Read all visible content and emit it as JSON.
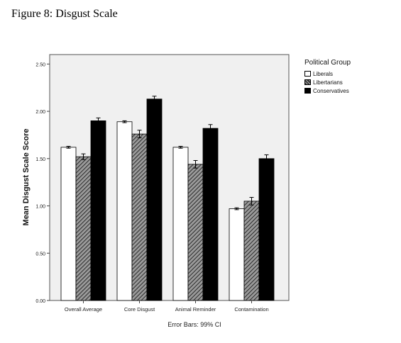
{
  "figure": {
    "title": "Figure 8: Disgust Scale"
  },
  "chart_data": {
    "type": "bar",
    "categories": [
      "Overall Average",
      "Core Disgust",
      "Animal Reminder",
      "Contamination"
    ],
    "series": [
      {
        "name": "Liberals",
        "values": [
          1.62,
          1.89,
          1.62,
          0.97
        ],
        "error": [
          [
            1.61,
            1.63
          ],
          [
            1.88,
            1.9
          ],
          [
            1.61,
            1.63
          ],
          [
            0.96,
            0.98
          ]
        ]
      },
      {
        "name": "Libertarians",
        "values": [
          1.52,
          1.76,
          1.44,
          1.05
        ],
        "error": [
          [
            1.49,
            1.55
          ],
          [
            1.72,
            1.8
          ],
          [
            1.4,
            1.48
          ],
          [
            1.01,
            1.09
          ]
        ]
      },
      {
        "name": "Conservatives",
        "values": [
          1.9,
          2.13,
          1.82,
          1.5
        ],
        "error": [
          [
            1.87,
            1.93
          ],
          [
            2.1,
            2.16
          ],
          [
            1.78,
            1.86
          ],
          [
            1.46,
            1.54
          ]
        ]
      }
    ],
    "ylabel": "Mean Disgust Scale Score",
    "xlabel": "",
    "ylim": [
      0,
      2.5
    ],
    "yticks": [
      0,
      0.5,
      1.0,
      1.5,
      2.0,
      2.5
    ],
    "ytick_labels": [
      "0.00",
      "0.50",
      "1.00",
      "1.50",
      "2.00",
      "2.50"
    ],
    "footnote": "Error Bars: 99% CI",
    "legend": {
      "title": "Political Group",
      "placement": "outside-right-top"
    },
    "colors": {
      "liberals_fill": "#ffffff",
      "libertarians_fill": "hatched-gray",
      "conservatives_fill": "#000000",
      "plot_background": "#f0f0f0"
    }
  }
}
